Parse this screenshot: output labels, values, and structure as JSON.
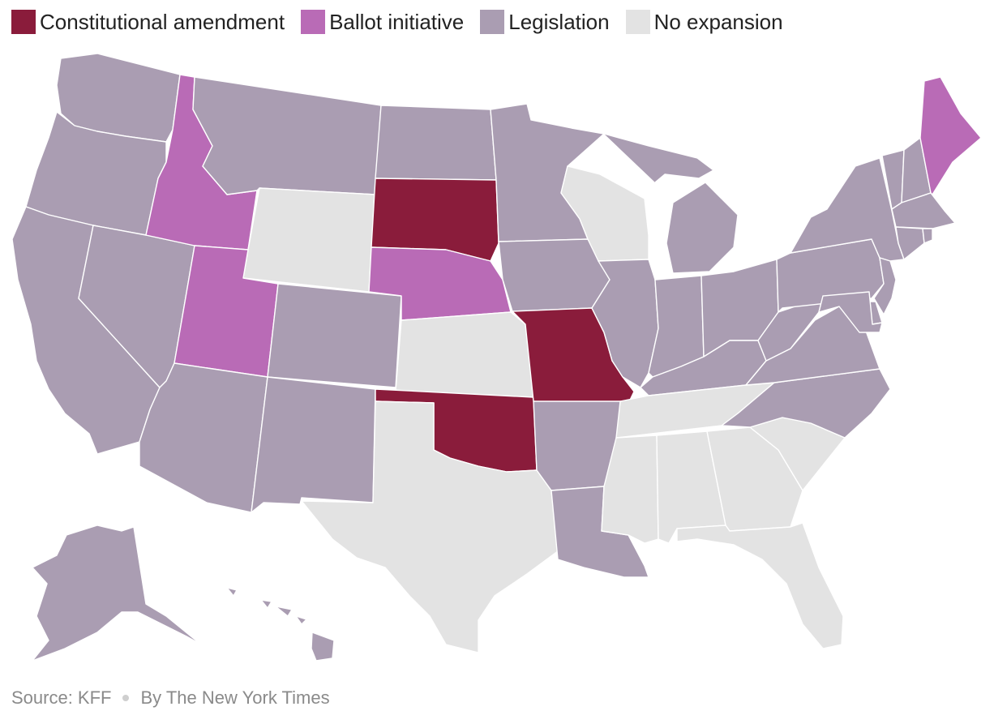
{
  "legend": {
    "items": [
      {
        "label": "Constitutional amendment",
        "color": "#8a1c3b"
      },
      {
        "label": "Ballot initiative",
        "color": "#b96bb6"
      },
      {
        "label": "Legislation",
        "color": "#aa9db2"
      },
      {
        "label": "No expansion",
        "color": "#e3e3e3"
      }
    ]
  },
  "footer": {
    "source": "Source: KFF",
    "credit": "By The New York Times"
  },
  "map_data": {
    "type": "choropleth",
    "states": {
      "Washington": "Legislation",
      "Oregon": "Legislation",
      "California": "Legislation",
      "Nevada": "Legislation",
      "Idaho": "Ballot initiative",
      "Montana": "Legislation",
      "Wyoming": "No expansion",
      "Utah": "Ballot initiative",
      "Arizona": "Legislation",
      "Colorado": "Legislation",
      "New Mexico": "Legislation",
      "North Dakota": "Legislation",
      "South Dakota": "Constitutional amendment",
      "Nebraska": "Ballot initiative",
      "Kansas": "No expansion",
      "Oklahoma": "Constitutional amendment",
      "Texas": "No expansion",
      "Minnesota": "Legislation",
      "Iowa": "Legislation",
      "Missouri": "Constitutional amendment",
      "Arkansas": "Legislation",
      "Louisiana": "Legislation",
      "Wisconsin": "No expansion",
      "Illinois": "Legislation",
      "Michigan": "Legislation",
      "Indiana": "Legislation",
      "Ohio": "Legislation",
      "Kentucky": "Legislation",
      "Tennessee": "No expansion",
      "Mississippi": "No expansion",
      "Alabama": "No expansion",
      "Georgia": "No expansion",
      "Florida": "No expansion",
      "South Carolina": "No expansion",
      "North Carolina": "Legislation",
      "Virginia": "Legislation",
      "West Virginia": "Legislation",
      "Pennsylvania": "Legislation",
      "New York": "Legislation",
      "New Jersey": "Legislation",
      "Maryland": "Legislation",
      "Delaware": "Legislation",
      "Vermont": "Legislation",
      "New Hampshire": "Legislation",
      "Massachusetts": "Legislation",
      "Connecticut": "Legislation",
      "Rhode Island": "Legislation",
      "Maine": "Ballot initiative",
      "Alaska": "Legislation",
      "Hawaii": "Legislation"
    }
  }
}
